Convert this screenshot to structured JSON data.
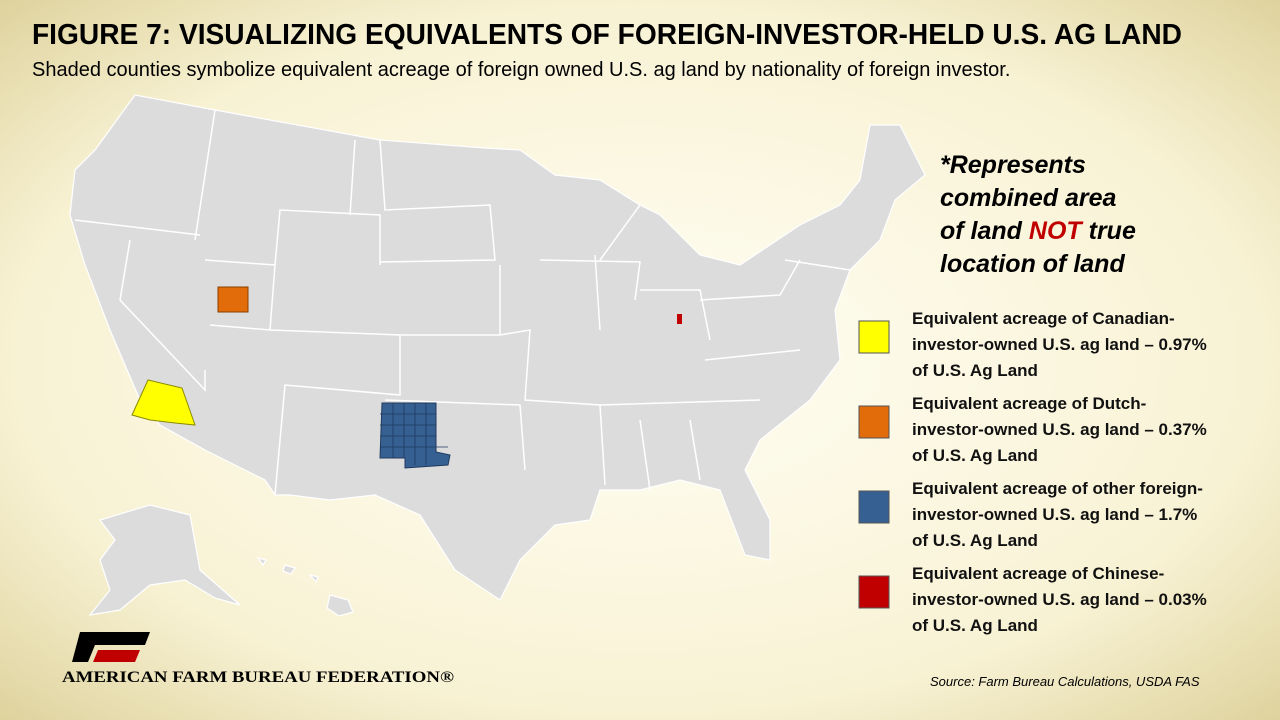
{
  "header": {
    "title": "FIGURE 7: VISUALIZING EQUIVALENTS OF FOREIGN-INVESTOR-HELD U.S. AG LAND",
    "subtitle": "Shaded counties symbolize equivalent acreage of foreign owned U.S. ag land by nationality of foreign investor."
  },
  "note": {
    "lines": [
      "*Represents",
      "combined area"
    ],
    "before": "of land",
    "emphasis": "NOT",
    "after": "true",
    "last": "location of land"
  },
  "legend": {
    "items": [
      {
        "color": "#ffff00",
        "lines": [
          "Equivalent acreage of Canadian-",
          "investor-owned U.S. ag land – 0.97%",
          "of U.S. Ag Land"
        ]
      },
      {
        "color": "#e36c0a",
        "lines": [
          "Equivalent acreage of Dutch-",
          "investor-owned U.S. ag land – 0.37%",
          "of U.S. Ag Land"
        ]
      },
      {
        "color": "#376092",
        "lines": [
          "Equivalent acreage of other foreign-",
          "investor-owned U.S. ag land – 1.7%",
          "of U.S. Ag Land"
        ]
      },
      {
        "color": "#c00000",
        "lines": [
          "Equivalent acreage of Chinese-",
          "investor-owned U.S. ag land – 0.03%",
          "of U.S. Ag Land"
        ]
      }
    ]
  },
  "source": "Source: Farm Bureau Calculations, USDA FAS",
  "logo": "AMERICAN FARM BUREAU FEDERATION®"
}
